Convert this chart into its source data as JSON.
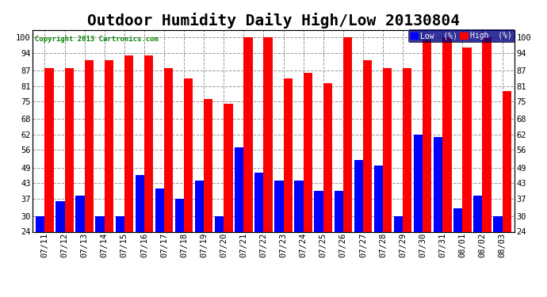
{
  "title": "Outdoor Humidity Daily High/Low 20130804",
  "copyright": "Copyright 2013 Cartronics.com",
  "categories": [
    "07/11",
    "07/12",
    "07/13",
    "07/14",
    "07/15",
    "07/16",
    "07/17",
    "07/18",
    "07/19",
    "07/20",
    "07/21",
    "07/22",
    "07/23",
    "07/24",
    "07/25",
    "07/26",
    "07/27",
    "07/28",
    "07/29",
    "07/30",
    "07/31",
    "08/01",
    "08/02",
    "08/03"
  ],
  "high_values": [
    88,
    88,
    91,
    91,
    93,
    93,
    88,
    84,
    76,
    74,
    100,
    100,
    84,
    86,
    82,
    100,
    91,
    88,
    88,
    99,
    100,
    96,
    100,
    79
  ],
  "low_values": [
    30,
    36,
    38,
    30,
    30,
    46,
    41,
    37,
    44,
    30,
    57,
    47,
    44,
    44,
    40,
    40,
    52,
    50,
    30,
    62,
    61,
    33,
    38,
    30
  ],
  "high_color": "#ff0000",
  "low_color": "#0000ff",
  "background_color": "#ffffff",
  "grid_color": "#999999",
  "yticks": [
    24,
    30,
    37,
    43,
    49,
    56,
    62,
    68,
    75,
    81,
    87,
    94,
    100
  ],
  "ylim": [
    24,
    103
  ],
  "title_fontsize": 14,
  "tick_fontsize": 7.5,
  "legend_low_label": "Low  (%)",
  "legend_high_label": "High  (%)"
}
